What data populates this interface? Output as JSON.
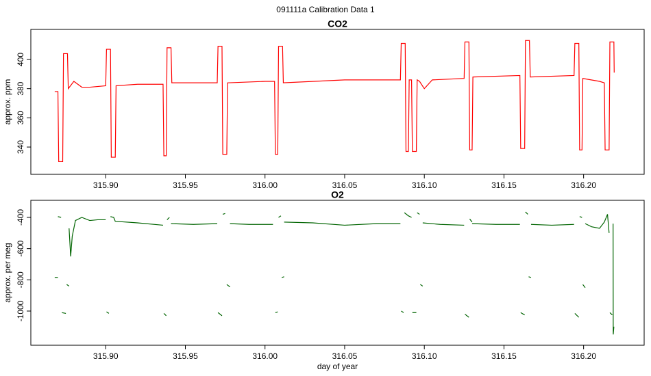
{
  "title": "091111a   Calibration Data 1",
  "chart_data": [
    {
      "type": "line",
      "title": "CO2",
      "y_label": "approx. ppm",
      "xlim": [
        315.853,
        316.238
      ],
      "ylim": [
        321.3,
        420.6
      ],
      "xticks": [
        {
          "value": 315.9,
          "label": "315.90"
        },
        315.95,
        {
          "value": 316.0,
          "label": "316.00"
        },
        316.05,
        {
          "value": 316.1,
          "label": "316.10"
        },
        316.15,
        {
          "value": 316.2,
          "label": "316.20"
        }
      ],
      "yticks": [
        340,
        360,
        380,
        400
      ],
      "series": [
        {
          "color": "#ff0000",
          "x": [
            315.868,
            315.87,
            315.8705,
            315.873,
            315.8735,
            315.876,
            315.8765,
            315.88,
            315.885,
            315.89,
            315.9,
            315.9005,
            315.903,
            315.9035,
            315.906,
            315.9065,
            315.92,
            315.936,
            315.9365,
            315.938,
            315.9385,
            315.941,
            315.9415,
            315.97,
            315.9705,
            315.973,
            315.9735,
            315.976,
            315.9765,
            316.0,
            316.006,
            316.0065,
            316.008,
            316.0085,
            316.011,
            316.0115,
            316.05,
            316.085,
            316.0855,
            316.088,
            316.0885,
            316.09,
            316.0905,
            316.092,
            316.0925,
            316.095,
            316.0955,
            316.097,
            316.1,
            316.105,
            316.125,
            316.1255,
            316.128,
            316.1285,
            316.13,
            316.1305,
            316.16,
            316.1605,
            316.163,
            316.1635,
            316.166,
            316.1665,
            316.194,
            316.1945,
            316.197,
            316.1975,
            316.199,
            316.1995,
            316.21,
            316.213,
            316.2135,
            316.216,
            316.2165,
            316.219,
            316.2192
          ],
          "values": [
            378,
            378,
            330,
            330,
            404,
            404,
            380,
            385,
            381,
            381,
            382,
            407,
            407,
            333,
            333,
            382,
            383,
            383,
            334,
            334,
            408,
            408,
            384,
            384,
            409,
            409,
            335,
            335,
            384,
            385,
            385,
            335,
            335,
            409,
            409,
            384,
            386,
            386,
            411,
            411,
            337,
            337,
            386,
            386,
            337,
            337,
            386,
            385,
            380,
            386,
            387,
            412,
            412,
            338,
            338,
            388,
            389,
            339,
            339,
            413,
            413,
            388,
            389,
            411,
            411,
            338,
            338,
            387,
            385,
            384,
            338,
            338,
            412,
            412,
            391
          ]
        }
      ]
    },
    {
      "type": "line",
      "title": "O2",
      "y_label": "approx. per meg",
      "x_label": "day of year",
      "xlim": [
        315.853,
        316.238
      ],
      "ylim": [
        -1219,
        -290.5
      ],
      "xticks": [
        {
          "value": 315.9,
          "label": "315.90"
        },
        315.95,
        {
          "value": 316.0,
          "label": "316.00"
        },
        316.05,
        {
          "value": 316.1,
          "label": "316.10"
        },
        316.15,
        {
          "value": 316.2,
          "label": "316.20"
        }
      ],
      "yticks": [
        -1000,
        -800,
        -600,
        -400
      ],
      "series": [
        {
          "color": "#006400",
          "x": [
            315.868,
            315.87,
            null,
            315.87,
            315.872,
            null,
            315.8725,
            315.875,
            null,
            315.8755,
            315.877,
            null,
            315.877,
            315.878,
            315.879,
            315.881,
            315.885,
            315.89,
            315.895,
            315.9,
            null,
            315.9005,
            315.902,
            null,
            315.903,
            315.905,
            315.906,
            315.92,
            315.936,
            null,
            315.9365,
            315.938,
            null,
            315.9385,
            315.94,
            null,
            315.941,
            315.955,
            315.97,
            null,
            315.9705,
            315.973,
            null,
            315.9735,
            315.975,
            null,
            315.976,
            315.978,
            null,
            315.978,
            315.99,
            316.005,
            null,
            316.0065,
            316.008,
            null,
            316.0085,
            316.01,
            null,
            316.0105,
            316.012,
            null,
            316.012,
            316.03,
            316.05,
            316.07,
            316.085,
            null,
            316.0855,
            316.087,
            null,
            316.0875,
            316.09,
            316.092,
            null,
            316.0925,
            316.095,
            null,
            316.0955,
            316.097,
            null,
            316.0975,
            316.099,
            null,
            316.099,
            316.11,
            316.125,
            null,
            316.1255,
            316.128,
            null,
            316.1285,
            316.13,
            null,
            316.13,
            316.145,
            316.16,
            null,
            316.1605,
            316.163,
            null,
            316.1635,
            316.165,
            null,
            316.1655,
            316.167,
            null,
            316.167,
            316.18,
            316.194,
            null,
            316.1945,
            316.197,
            null,
            316.1975,
            316.199,
            null,
            316.1995,
            316.201,
            null,
            316.201,
            316.205,
            316.21,
            316.213,
            316.215,
            316.216,
            null,
            316.2165,
            316.218,
            null,
            316.2185,
            316.2186,
            316.219
          ],
          "values": [
            -785,
            -785,
            null,
            -395,
            -400,
            null,
            -1010,
            -1015,
            null,
            -830,
            -840,
            null,
            -470,
            -650,
            -520,
            -420,
            -400,
            -420,
            -415,
            -415,
            null,
            -1005,
            -1015,
            null,
            -395,
            -400,
            -425,
            -435,
            -450,
            null,
            -1015,
            -1030,
            null,
            -415,
            -400,
            null,
            -440,
            -445,
            -440,
            null,
            -1010,
            -1030,
            null,
            -380,
            -375,
            null,
            -830,
            -845,
            null,
            -440,
            -445,
            -445,
            null,
            -1010,
            -1005,
            null,
            -400,
            -390,
            null,
            -785,
            -780,
            null,
            -430,
            -435,
            -450,
            -440,
            -440,
            null,
            -1000,
            -1010,
            null,
            -370,
            -390,
            -400,
            null,
            -1010,
            -1010,
            null,
            -370,
            -380,
            null,
            -830,
            -840,
            null,
            -435,
            -445,
            -450,
            null,
            -1020,
            -1040,
            null,
            -410,
            -430,
            null,
            -440,
            -445,
            -445,
            null,
            -1010,
            -1025,
            null,
            -365,
            -380,
            null,
            -780,
            -785,
            null,
            -445,
            -450,
            -445,
            null,
            -1015,
            -1040,
            null,
            -395,
            -400,
            null,
            -830,
            -850,
            null,
            -440,
            -460,
            -470,
            -430,
            -380,
            -500,
            null,
            -1010,
            -1025,
            null,
            -440,
            -1150,
            -1100
          ]
        }
      ]
    }
  ]
}
